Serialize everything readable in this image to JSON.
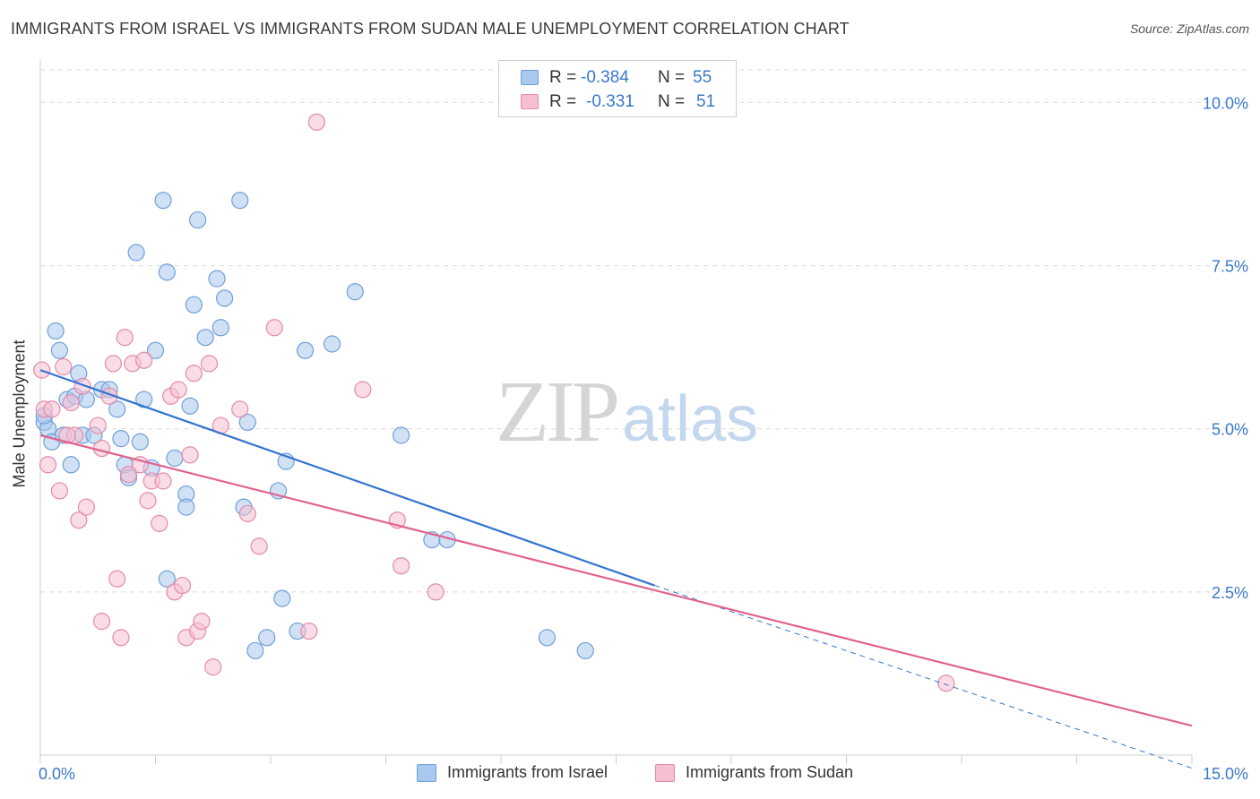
{
  "title": "IMMIGRANTS FROM ISRAEL VS IMMIGRANTS FROM SUDAN MALE UNEMPLOYMENT CORRELATION CHART",
  "source": "Source: ZipAtlas.com",
  "watermark": {
    "zip": "ZIP",
    "atlas": "atlas"
  },
  "legend_top": {
    "rows": [
      {
        "r_label": "R =",
        "r_value": "-0.384",
        "n_label": "N =",
        "n_value": "55"
      },
      {
        "r_label": "R =",
        "r_value": "-0.331",
        "n_label": "N =",
        "n_value": "51"
      }
    ]
  },
  "colors": {
    "israel_fill": "#a9c8ef",
    "israel_stroke": "#6f9fd8",
    "israel_line": "#3473d1",
    "sudan_fill": "#f6bfd1",
    "sudan_stroke": "#e58aa8",
    "sudan_line": "#e0648e",
    "tick_label": "#3a78c9",
    "grid": "#d9d9d9"
  },
  "chart_data": {
    "type": "scatter",
    "title": "IMMIGRANTS FROM ISRAEL VS IMMIGRANTS FROM SUDAN MALE UNEMPLOYMENT CORRELATION CHART",
    "xlabel": "",
    "ylabel": "Male Unemployment",
    "xlim": [
      0,
      15
    ],
    "ylim": [
      0,
      10.5
    ],
    "x_tick_labels": [
      "0.0%",
      "15.0%"
    ],
    "y_ticks": [
      2.5,
      5.0,
      7.5,
      10.0
    ],
    "y_tick_labels": [
      "2.5%",
      "5.0%",
      "7.5%",
      "10.0%"
    ],
    "grid": true,
    "legend_position": "bottom",
    "series": [
      {
        "name": "Immigrants from Israel",
        "r": -0.384,
        "n": 55,
        "trend": {
          "x": [
            0.0,
            8.0
          ],
          "y": [
            5.9,
            2.6
          ],
          "dashed_to": [
            15.0,
            -0.2
          ]
        },
        "points": [
          [
            0.05,
            5.1
          ],
          [
            0.1,
            5.0
          ],
          [
            0.15,
            4.8
          ],
          [
            0.2,
            6.5
          ],
          [
            0.25,
            6.2
          ],
          [
            0.3,
            4.9
          ],
          [
            0.35,
            5.45
          ],
          [
            0.4,
            4.45
          ],
          [
            0.45,
            5.5
          ],
          [
            0.5,
            5.85
          ],
          [
            0.55,
            4.9
          ],
          [
            0.6,
            5.45
          ],
          [
            0.7,
            4.9
          ],
          [
            0.8,
            5.6
          ],
          [
            0.9,
            5.6
          ],
          [
            1.0,
            5.3
          ],
          [
            1.05,
            4.85
          ],
          [
            1.1,
            4.45
          ],
          [
            1.15,
            4.25
          ],
          [
            1.25,
            7.7
          ],
          [
            1.3,
            4.8
          ],
          [
            1.35,
            5.45
          ],
          [
            1.45,
            4.4
          ],
          [
            1.5,
            6.2
          ],
          [
            1.6,
            8.5
          ],
          [
            1.65,
            7.4
          ],
          [
            1.65,
            2.7
          ],
          [
            1.75,
            4.55
          ],
          [
            1.9,
            4.0
          ],
          [
            1.9,
            3.8
          ],
          [
            1.95,
            5.35
          ],
          [
            2.0,
            6.9
          ],
          [
            2.05,
            8.2
          ],
          [
            2.15,
            6.4
          ],
          [
            2.3,
            7.3
          ],
          [
            2.35,
            6.55
          ],
          [
            2.4,
            7.0
          ],
          [
            2.6,
            8.5
          ],
          [
            2.65,
            3.8
          ],
          [
            2.7,
            5.1
          ],
          [
            2.8,
            1.6
          ],
          [
            2.95,
            1.8
          ],
          [
            3.1,
            4.05
          ],
          [
            3.15,
            2.4
          ],
          [
            3.2,
            4.5
          ],
          [
            3.35,
            1.9
          ],
          [
            3.45,
            6.2
          ],
          [
            3.8,
            6.3
          ],
          [
            4.1,
            7.1
          ],
          [
            4.7,
            4.9
          ],
          [
            5.1,
            3.3
          ],
          [
            5.3,
            3.3
          ],
          [
            6.6,
            1.8
          ],
          [
            7.1,
            1.6
          ],
          [
            0.05,
            5.2
          ]
        ]
      },
      {
        "name": "Immigrants from Sudan",
        "r": -0.331,
        "n": 51,
        "trend": {
          "x": [
            0.0,
            15.0
          ],
          "y": [
            4.9,
            0.45
          ]
        },
        "points": [
          [
            0.02,
            5.9
          ],
          [
            0.05,
            5.3
          ],
          [
            0.1,
            4.45
          ],
          [
            0.15,
            5.3
          ],
          [
            0.25,
            4.05
          ],
          [
            0.3,
            5.95
          ],
          [
            0.4,
            5.4
          ],
          [
            0.45,
            4.9
          ],
          [
            0.5,
            3.6
          ],
          [
            0.55,
            5.65
          ],
          [
            0.6,
            3.8
          ],
          [
            0.75,
            5.05
          ],
          [
            0.8,
            4.7
          ],
          [
            0.8,
            2.05
          ],
          [
            0.9,
            5.5
          ],
          [
            0.95,
            6.0
          ],
          [
            1.0,
            2.7
          ],
          [
            1.05,
            1.8
          ],
          [
            1.1,
            6.4
          ],
          [
            1.2,
            6.0
          ],
          [
            1.3,
            4.45
          ],
          [
            1.35,
            6.05
          ],
          [
            1.4,
            3.9
          ],
          [
            1.45,
            4.2
          ],
          [
            1.55,
            3.55
          ],
          [
            1.6,
            4.2
          ],
          [
            1.7,
            5.5
          ],
          [
            1.75,
            2.5
          ],
          [
            1.8,
            5.6
          ],
          [
            1.85,
            2.6
          ],
          [
            1.9,
            1.8
          ],
          [
            1.95,
            4.6
          ],
          [
            2.0,
            5.85
          ],
          [
            2.05,
            1.9
          ],
          [
            2.1,
            2.05
          ],
          [
            2.2,
            6.0
          ],
          [
            2.25,
            1.35
          ],
          [
            2.35,
            5.05
          ],
          [
            2.6,
            5.3
          ],
          [
            2.7,
            3.7
          ],
          [
            2.85,
            3.2
          ],
          [
            3.05,
            6.55
          ],
          [
            3.5,
            1.9
          ],
          [
            3.6,
            9.7
          ],
          [
            4.2,
            5.6
          ],
          [
            4.65,
            3.6
          ],
          [
            4.7,
            2.9
          ],
          [
            5.15,
            2.5
          ],
          [
            11.8,
            1.1
          ],
          [
            0.35,
            4.9
          ],
          [
            1.15,
            4.3
          ]
        ]
      }
    ]
  }
}
